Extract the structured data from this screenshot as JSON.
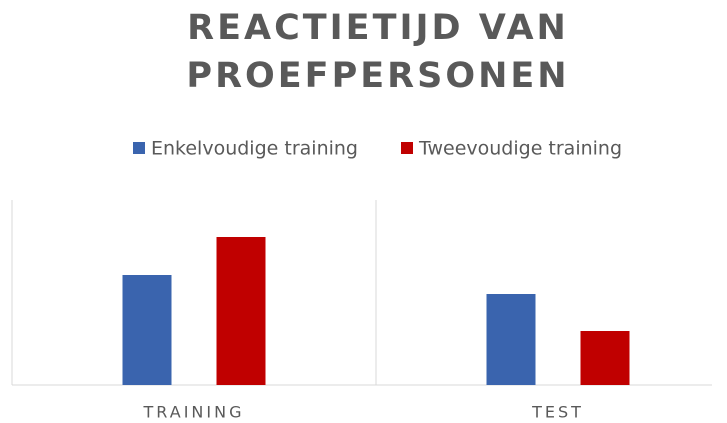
{
  "chart_data": {
    "type": "bar",
    "title": "REACTIETIJD VAN PROEFPERSONEN",
    "categories": [
      "TRAINING",
      "TEST"
    ],
    "series": [
      {
        "name": "Enkelvoudige training",
        "color": "#3a64ae",
        "values": [
          110,
          91
        ]
      },
      {
        "name": "Tweevoudige training",
        "color": "#c00000",
        "values": [
          148,
          54
        ]
      }
    ],
    "ylim": [
      0,
      185
    ]
  }
}
